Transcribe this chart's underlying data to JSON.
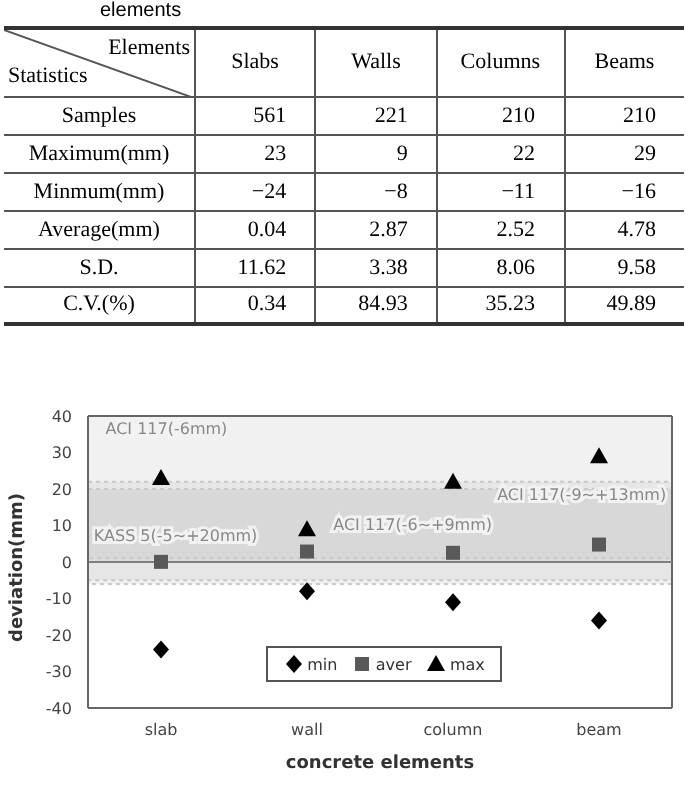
{
  "chart_data": [
    {
      "type": "other",
      "title": "elements",
      "xlabel": "Elements",
      "ylabel": "Statistics",
      "categories": [
        "Slabs",
        "Walls",
        "Columns",
        "Beams"
      ],
      "y_categories": [
        "Samples",
        "Maximum(mm)",
        "Minmum(mm)",
        "Average(mm)",
        "S.D.",
        "C.V.(%)"
      ],
      "cell_labels": [
        [
          "561",
          "221",
          "210",
          "210"
        ],
        [
          "23",
          "9",
          "22",
          "29"
        ],
        [
          "−24",
          "−8",
          "−11",
          "−16"
        ],
        [
          "0.04",
          "2.87",
          "2.52",
          "4.78"
        ],
        [
          "11.62",
          "3.38",
          "8.06",
          "9.58"
        ],
        [
          "0.34",
          "84.93",
          "35.23",
          "49.89"
        ]
      ]
    },
    {
      "type": "scatter",
      "xlabel": "concrete elements",
      "ylabel": "deviation(mm)",
      "categories": [
        "slab",
        "wall",
        "column",
        "beam"
      ],
      "series": [
        {
          "name": "min",
          "color": "#000000",
          "marker": "diamond",
          "values": [
            -24,
            -8,
            -11,
            -16
          ]
        },
        {
          "name": "aver",
          "color": "#595959",
          "marker": "square",
          "values": [
            0.04,
            2.87,
            2.52,
            4.78
          ]
        },
        {
          "name": "max",
          "color": "#000000",
          "marker": "triangle",
          "values": [
            23,
            9,
            22,
            29
          ]
        }
      ],
      "ylim": [
        -40,
        40
      ],
      "yticks": [
        -40,
        -30,
        -20,
        -10,
        0,
        10,
        20,
        30,
        40
      ],
      "legend": "bottom",
      "ref_lines": [
        {
          "axis": "y",
          "value": 0,
          "color": "#808080",
          "line_style": "solid"
        }
      ],
      "bands": [
        {
          "axis": "y",
          "from": -5,
          "to": 20,
          "color": "#c8c8c8",
          "label": "KASS 5(-5~+20mm)"
        },
        {
          "axis": "y",
          "from": -6,
          "to": 40,
          "color": "#c8c8c8",
          "label": "ACI 117(-6mm)"
        },
        {
          "axis": "y",
          "from": 1,
          "to": 20,
          "color": "#c8c8c8",
          "label": "ACI 117(-6~+9mm)"
        },
        {
          "axis": "y",
          "from": 0,
          "to": 22,
          "color": "#c8c8c8",
          "label": "ACI 117(-9~+13mm)"
        }
      ]
    }
  ]
}
